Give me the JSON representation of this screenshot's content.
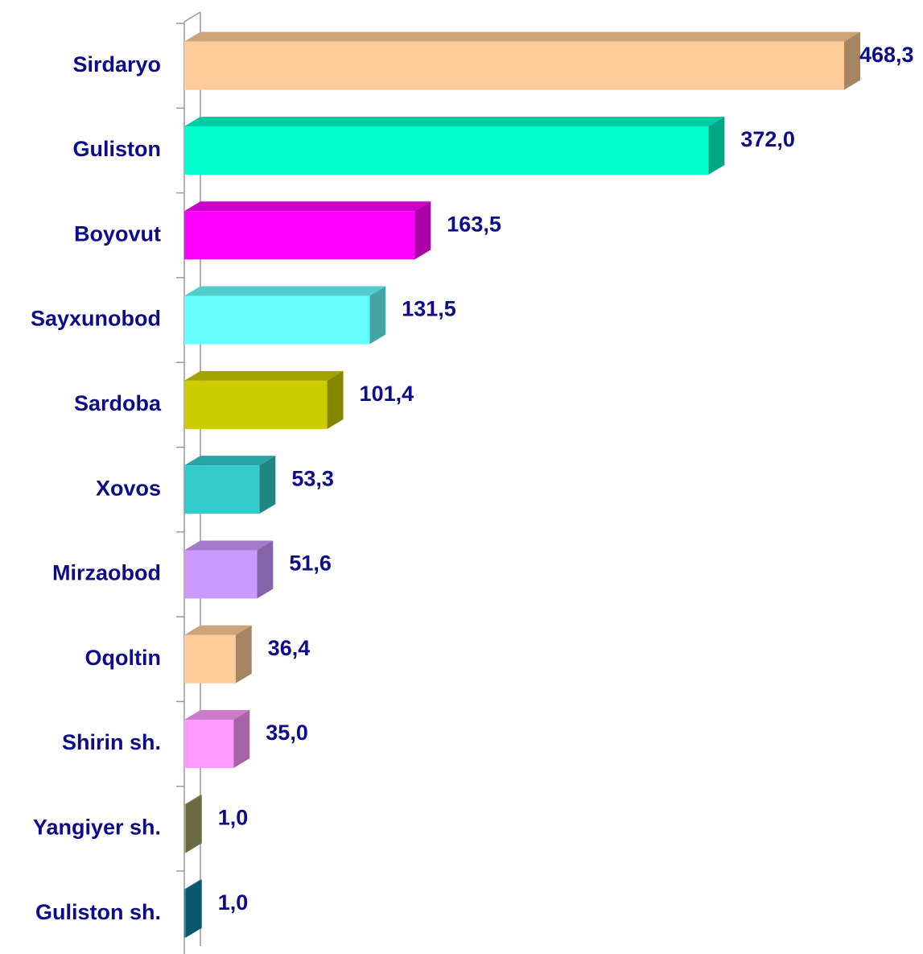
{
  "chart_data": {
    "type": "bar",
    "orientation": "horizontal",
    "categories": [
      "Sirdaryo",
      "Guliston",
      "Boyovut",
      "Sayxunobod",
      "Sardoba",
      "Xovos",
      "Mirzaobod",
      "Oqoltin",
      "Shirin sh.",
      "Yangiyer sh.",
      "Guliston sh."
    ],
    "values": [
      468.3,
      372.0,
      163.5,
      131.5,
      101.4,
      53.3,
      51.6,
      36.4,
      35.0,
      1.0,
      1.0
    ],
    "value_labels": [
      "468,3",
      "372,0",
      "163,5",
      "131,5",
      "101,4",
      "53,3",
      "51,6",
      "36,4",
      "35,0",
      "1,0",
      "1,0"
    ],
    "colors": [
      "#ffcc99",
      "#00ffcc",
      "#ff00ff",
      "#66ffff",
      "#cccc00",
      "#33cccc",
      "#cc99ff",
      "#ffcc99",
      "#ff99ff",
      "#a3a366",
      "#0e86a8"
    ]
  }
}
